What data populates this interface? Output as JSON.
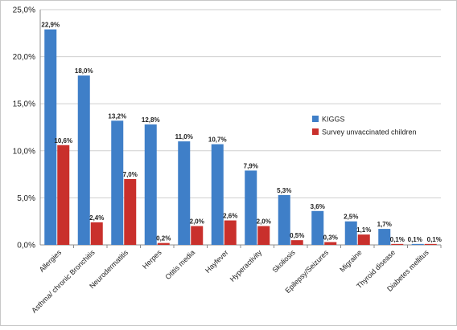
{
  "chart_data": {
    "type": "bar",
    "categories": [
      "Allergies",
      "Asthma/ chronic Bronchitis",
      "Neurodermatitis",
      "Herpes",
      "Otitis media",
      "Hayfever",
      "Hyperactivity",
      "Skoliosis",
      "Epilepsy/Seizures",
      "Migraine",
      "Thyroid disease",
      "Diabetes mellitus"
    ],
    "series": [
      {
        "name": "KIGGS",
        "color": "#3f7fc8",
        "values": [
          22.9,
          18.0,
          13.2,
          12.8,
          11.0,
          10.7,
          7.9,
          5.3,
          3.6,
          2.5,
          1.7,
          0.1
        ],
        "labels": [
          "22,9%",
          "18,0%",
          "13,2%",
          "12,8%",
          "11,0%",
          "10,7%",
          "7,9%",
          "5,3%",
          "3,6%",
          "2,5%",
          "1,7%",
          "0,1%"
        ]
      },
      {
        "name": "Survey unvaccinated children",
        "color": "#c9302c",
        "values": [
          10.6,
          2.4,
          7.0,
          0.2,
          2.0,
          2.6,
          2.0,
          0.5,
          0.3,
          1.1,
          0.1,
          0.1
        ],
        "labels": [
          "10,6%",
          "2,4%",
          "7,0%",
          "0,2%",
          "2,0%",
          "2,6%",
          "2,0%",
          "0,5%",
          "0,3%",
          "1,1%",
          "0,1%",
          "0,1%"
        ]
      }
    ],
    "ylim": [
      0,
      25
    ],
    "yticks": [
      0,
      5,
      10,
      15,
      20,
      25
    ],
    "ytick_labels": [
      "0,0%",
      "5,0%",
      "10,0%",
      "15,0%",
      "20,0%",
      "25,0%"
    ],
    "grid": true,
    "legend": "right"
  }
}
